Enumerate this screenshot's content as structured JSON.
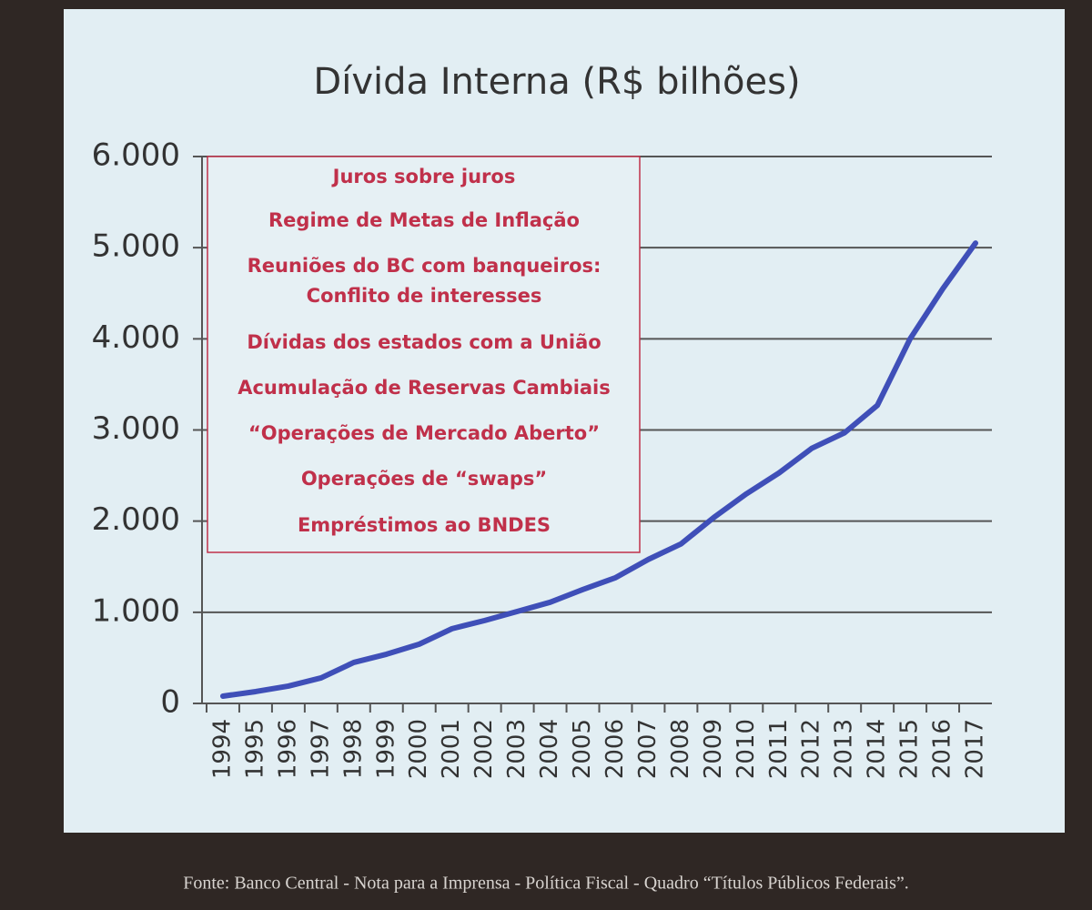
{
  "chart_data": {
    "type": "line",
    "title": "Dívida Interna (R$ bilhões)",
    "categories": [
      "1994",
      "1995",
      "1996",
      "1997",
      "1998",
      "1999",
      "2000",
      "2001",
      "2002",
      "2003",
      "2004",
      "2005",
      "2006",
      "2007",
      "2008",
      "2009",
      "2010",
      "2011",
      "2012",
      "2013",
      "2014",
      "2015",
      "2016",
      "2017"
    ],
    "series": [
      {
        "name": "Dívida Interna",
        "color": "#3f4fb8",
        "values": [
          80,
          130,
          190,
          280,
          450,
          540,
          650,
          820,
          910,
          1010,
          1110,
          1250,
          1380,
          1580,
          1750,
          2040,
          2300,
          2530,
          2800,
          2970,
          3270,
          4000,
          4550,
          5050
        ]
      }
    ],
    "ylim": [
      0,
      6000
    ],
    "yticks": [
      0,
      {
        "value": 1000,
        "label": "1.000"
      },
      {
        "value": 2000,
        "label": "2.000"
      },
      {
        "value": 3000,
        "label": "3.000"
      },
      {
        "value": 4000,
        "label": "4.000"
      },
      {
        "value": 5000,
        "label": "5.000"
      },
      {
        "value": 6000,
        "label": "6.000"
      }
    ],
    "grid": true,
    "annotations": [
      "Juros sobre juros",
      "Regime de Metas de Inflação",
      "Reuniões do BC com banqueiros:",
      "Conflito de interesses",
      "Dívidas dos estados com a União",
      "Acumulação de Reservas Cambiais",
      "“Operações de Mercado Aberto”",
      "Operações de “swaps”",
      "Empréstimos ao BNDES"
    ],
    "source": "Fonte: Banco Central - Nota para a Imprensa - Política Fiscal - Quadro “Títulos Públicos Federais”."
  }
}
